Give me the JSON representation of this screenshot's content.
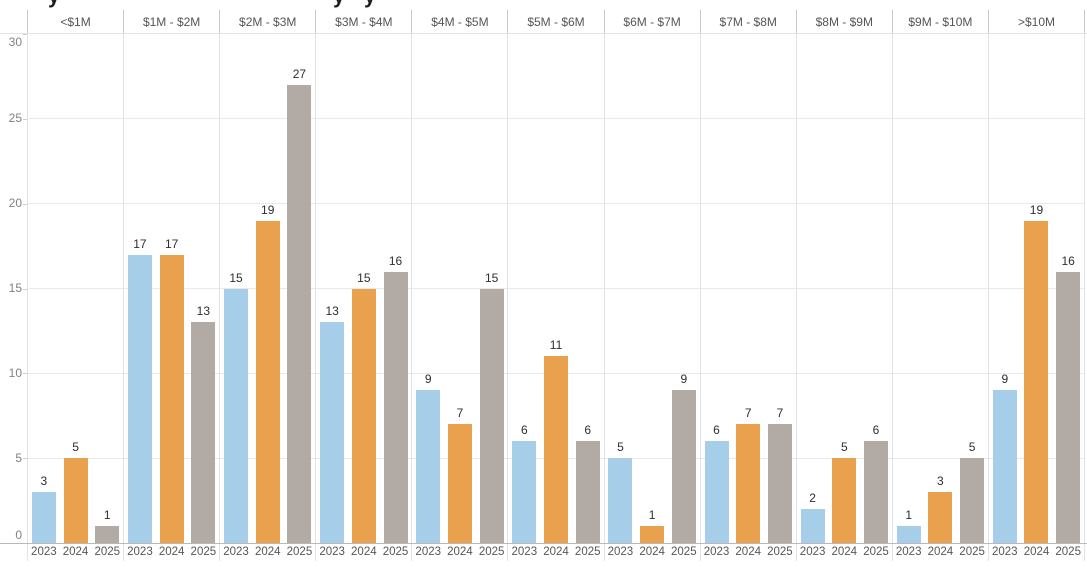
{
  "title": {
    "clipped_descender_glyphs": [
      "y",
      "y",
      "y"
    ]
  },
  "colors": {
    "bar_2023": "#a6cee8",
    "bar_2024": "#e9a14e",
    "bar_2025": "#b2aba5"
  },
  "chart_data": {
    "type": "bar",
    "title": "",
    "categories": [
      "<$1M",
      "$1M - $2M",
      "$2M - $3M",
      "$3M - $4M",
      "$4M - $5M",
      "$5M - $6M",
      "$6M - $7M",
      "$7M - $8M",
      "$8M - $9M",
      "$9M - $10M",
      ">$10M"
    ],
    "series": [
      {
        "name": "2023",
        "color": "#a6cee8",
        "values": [
          3,
          17,
          15,
          13,
          9,
          6,
          5,
          6,
          2,
          1,
          9
        ]
      },
      {
        "name": "2024",
        "color": "#e9a14e",
        "values": [
          5,
          17,
          19,
          15,
          7,
          11,
          1,
          7,
          5,
          3,
          19
        ]
      },
      {
        "name": "2025",
        "color": "#b2aba5",
        "values": [
          1,
          13,
          27,
          16,
          15,
          6,
          9,
          7,
          6,
          5,
          16
        ]
      }
    ],
    "xlabel": "",
    "ylabel": "",
    "ylim": [
      0,
      30
    ],
    "yticks": [
      0,
      5,
      10,
      15,
      20,
      25,
      30
    ],
    "grid": true,
    "value_labels_shown": true,
    "legend_position": "none",
    "x_sub_labels_per_group": [
      "2023",
      "2024",
      "2025"
    ]
  }
}
